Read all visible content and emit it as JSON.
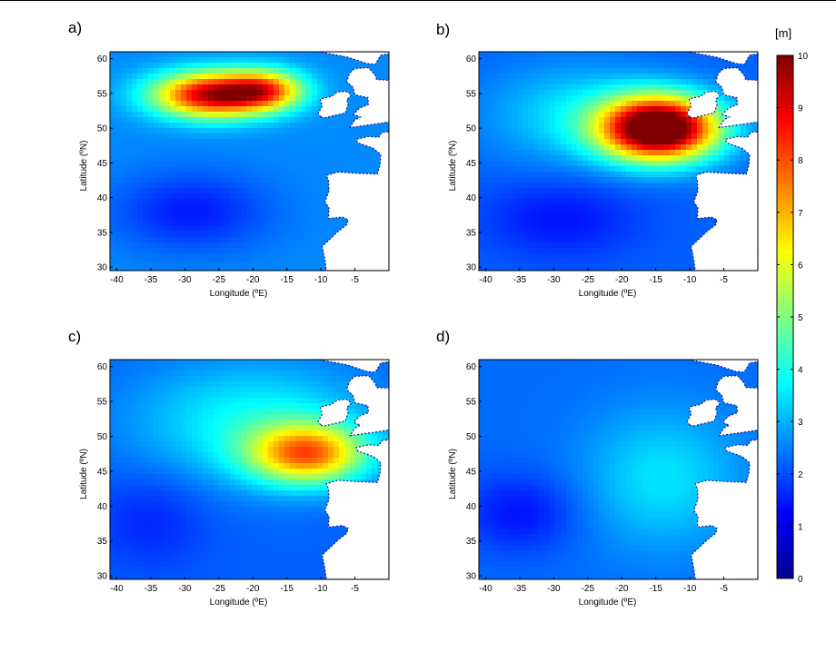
{
  "colors": {
    "colormap": [
      "#00008f",
      "#0000ff",
      "#0080ff",
      "#00ffff",
      "#80ff80",
      "#ffff00",
      "#ff8000",
      "#ff0000",
      "#800000"
    ],
    "land": "#ffffff",
    "axis": "#000000"
  },
  "chart_data": [
    {
      "type": "heatmap",
      "panel": "a)",
      "xlabel": "Longitude (ºE)",
      "ylabel": "Latitude (ºN)",
      "xlim": [
        -41,
        0
      ],
      "ylim": [
        29.5,
        61
      ],
      "xticks": [
        -40,
        -35,
        -30,
        -25,
        -20,
        -15,
        -10,
        -5
      ],
      "yticks": [
        30,
        35,
        40,
        45,
        50,
        55,
        60
      ],
      "field": {
        "background_m": 2.6,
        "features": [
          {
            "lon": -26,
            "lat": 54.8,
            "sigma_lon": 6,
            "sigma_lat": 2.3,
            "peak_m": 6.8
          },
          {
            "lon": -18,
            "lat": 55.5,
            "sigma_lon": 4,
            "sigma_lat": 2,
            "peak_m": 4.0
          },
          {
            "lon": -29,
            "lat": 38,
            "sigma_lon": 8,
            "sigma_lat": 4,
            "peak_m": -1.1
          }
        ]
      }
    },
    {
      "type": "heatmap",
      "panel": "b)",
      "xlabel": "Longitude (ºE)",
      "ylabel": "Latitude (ºN)",
      "xlim": [
        -41,
        0
      ],
      "ylim": [
        29.5,
        61
      ],
      "xticks": [
        -40,
        -35,
        -30,
        -25,
        -20,
        -15,
        -10,
        -5
      ],
      "yticks": [
        30,
        35,
        40,
        45,
        50,
        55,
        60
      ],
      "field": {
        "background_m": 2.2,
        "features": [
          {
            "lon": -14.5,
            "lat": 50,
            "sigma_lon": 6,
            "sigma_lat": 3.2,
            "peak_m": 9.5
          },
          {
            "lon": -27,
            "lat": 52,
            "sigma_lon": 9,
            "sigma_lat": 5,
            "peak_m": 1.2
          },
          {
            "lon": -29,
            "lat": 37,
            "sigma_lon": 8,
            "sigma_lat": 4,
            "peak_m": -0.8
          }
        ]
      }
    },
    {
      "type": "heatmap",
      "panel": "c)",
      "xlabel": "Longitude (ºE)",
      "ylabel": "Latitude (ºN)",
      "xlim": [
        -41,
        0
      ],
      "ylim": [
        29.5,
        61
      ],
      "xticks": [
        -40,
        -35,
        -30,
        -25,
        -20,
        -15,
        -10,
        -5
      ],
      "yticks": [
        30,
        35,
        40,
        45,
        50,
        55,
        60
      ],
      "field": {
        "background_m": 2.2,
        "features": [
          {
            "lon": -12,
            "lat": 47.5,
            "sigma_lon": 6,
            "sigma_lat": 3,
            "peak_m": 5.0
          },
          {
            "lon": -20,
            "lat": 52,
            "sigma_lon": 12,
            "sigma_lat": 6,
            "peak_m": 1.6
          },
          {
            "lon": -35,
            "lat": 38,
            "sigma_lon": 6,
            "sigma_lat": 5,
            "peak_m": -0.6
          }
        ]
      }
    },
    {
      "type": "heatmap",
      "panel": "d)",
      "xlabel": "Longitude (ºE)",
      "ylabel": "Latitude (ºN)",
      "xlim": [
        -41,
        0
      ],
      "ylim": [
        29.5,
        61
      ],
      "xticks": [
        -40,
        -35,
        -30,
        -25,
        -20,
        -15,
        -10,
        -5
      ],
      "yticks": [
        30,
        35,
        40,
        45,
        50,
        55,
        60
      ],
      "field": {
        "background_m": 2.3,
        "features": [
          {
            "lon": -14,
            "lat": 44,
            "sigma_lon": 8,
            "sigma_lat": 7,
            "peak_m": 1.2
          },
          {
            "lon": -35,
            "lat": 39,
            "sigma_lon": 6,
            "sigma_lat": 4,
            "peak_m": -0.9
          }
        ]
      }
    },
    {
      "type": "colorbar",
      "unit": "[m]",
      "range": [
        0,
        10
      ],
      "ticks": [
        0,
        1,
        2,
        3,
        4,
        5,
        6,
        7,
        8,
        9,
        10
      ]
    }
  ]
}
